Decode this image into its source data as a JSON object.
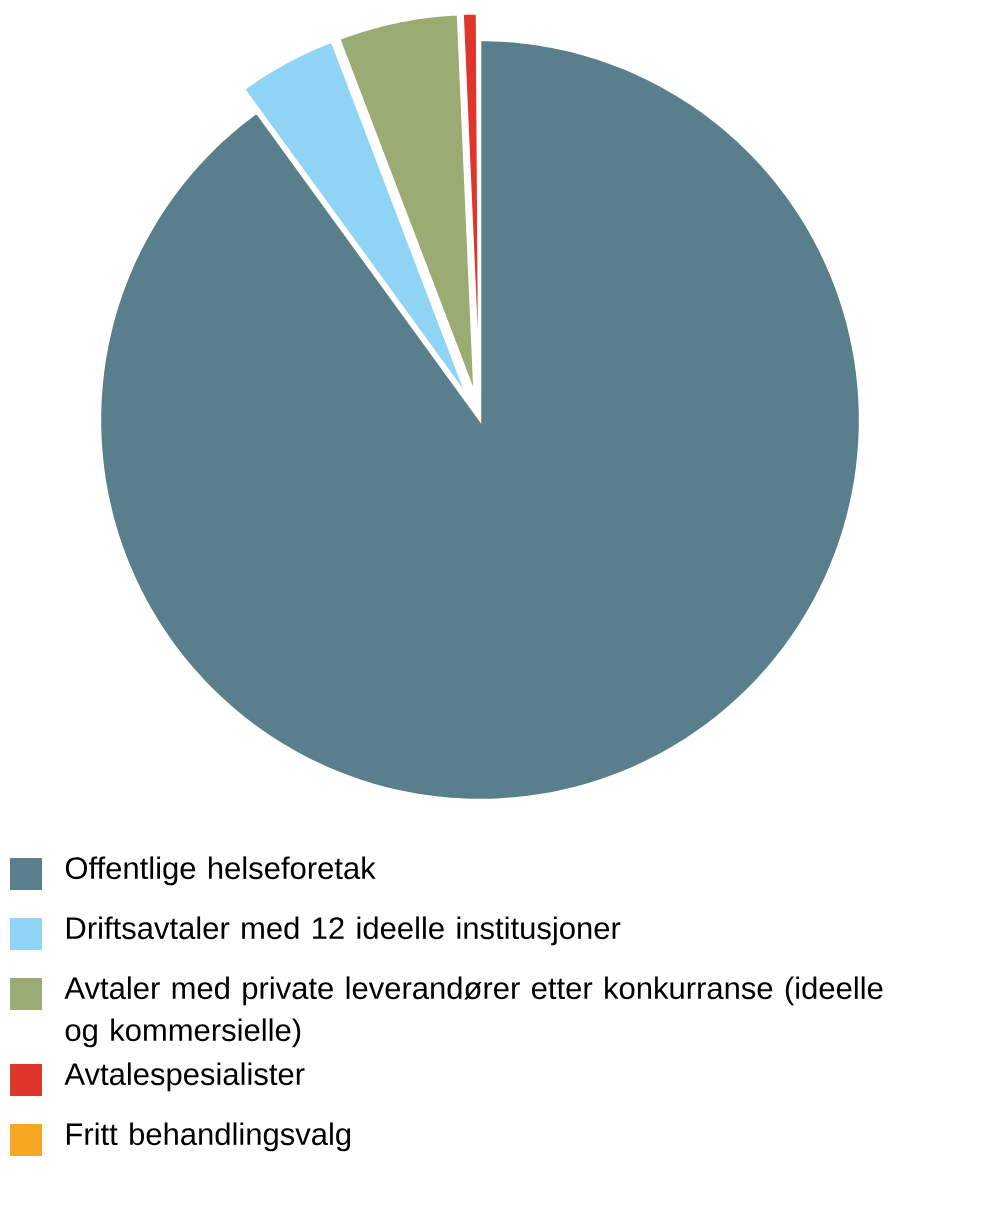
{
  "chart_data": {
    "type": "pie",
    "legend": "bottom",
    "categories": [
      "Offentlige helseforetak",
      "Driftsavtaler med 12 ideelle institusjoner",
      "Avtaler med private leverandører etter konkurranse (ideelle og kommersielle)",
      "Avtalespesialister",
      "Fritt behandlingsvalg"
    ],
    "values": [
      90.0,
      4.2,
      5.1,
      0.6,
      0.1
    ],
    "colors": [
      "#5a7f8c",
      "#8fd3f5",
      "#9aab74",
      "#e0352b",
      "#f5a623"
    ]
  }
}
